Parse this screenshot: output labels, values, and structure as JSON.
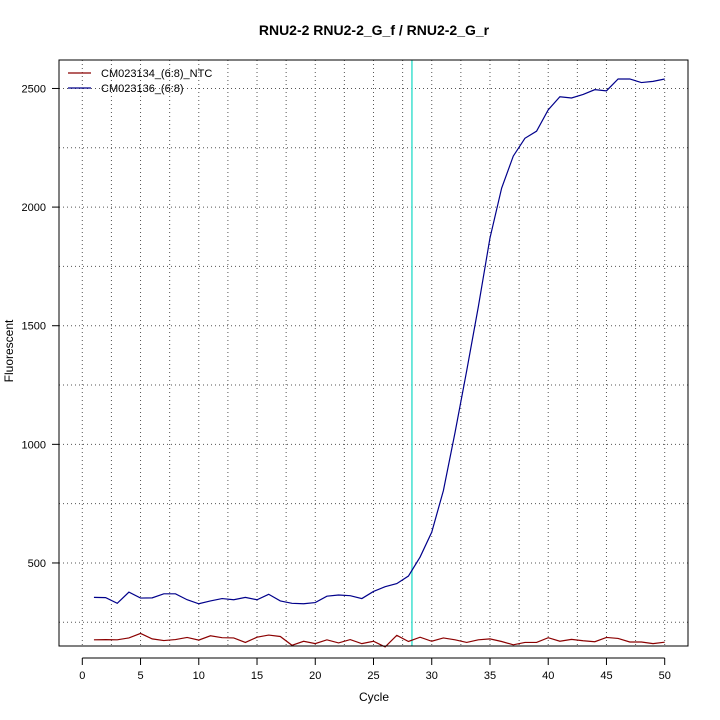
{
  "chart_data": {
    "type": "line",
    "title": "RNU2-2  RNU2-2_G_f / RNU2-2_G_r",
    "xlabel": "Cycle",
    "ylabel": "Fluorescent",
    "xlim": [
      -2,
      52
    ],
    "ylim": [
      150,
      2620
    ],
    "xticks": [
      0,
      5,
      10,
      15,
      20,
      25,
      30,
      35,
      40,
      45,
      50
    ],
    "yticks": [
      500,
      1000,
      1500,
      2000,
      2500
    ],
    "grid": true,
    "legend_position": "top-left",
    "threshold_cycle": 28.3,
    "threshold_color": "#40e0d0",
    "x": [
      1,
      2,
      3,
      4,
      5,
      6,
      7,
      8,
      9,
      10,
      11,
      12,
      13,
      14,
      15,
      16,
      17,
      18,
      19,
      20,
      21,
      22,
      23,
      24,
      25,
      26,
      27,
      28,
      29,
      30,
      31,
      32,
      33,
      34,
      35,
      36,
      37,
      38,
      39,
      40,
      41,
      42,
      43,
      44,
      45,
      46,
      47,
      48,
      49,
      50
    ],
    "series": [
      {
        "name": "CM023134_(6:8)_NTC",
        "color": "#8b0000",
        "values": [
          176,
          177,
          176,
          184,
          203,
          180,
          173,
          177,
          186,
          175,
          193,
          185,
          184,
          165,
          187,
          196,
          190,
          153,
          170,
          160,
          176,
          163,
          177,
          160,
          170,
          146,
          195,
          169,
          187,
          170,
          184,
          176,
          165,
          176,
          180,
          169,
          155,
          165,
          165,
          185,
          170,
          178,
          172,
          168,
          186,
          182,
          167,
          167,
          160,
          166
        ]
      },
      {
        "name": "CM023136_(6:8)",
        "color": "#00008b",
        "values": [
          355,
          354,
          330,
          377,
          352,
          353,
          370,
          370,
          345,
          328,
          340,
          350,
          345,
          355,
          345,
          368,
          340,
          330,
          328,
          333,
          360,
          365,
          362,
          350,
          380,
          400,
          413,
          445,
          525,
          630,
          805,
          1050,
          1310,
          1580,
          1870,
          2080,
          2215,
          2290,
          2320,
          2410,
          2465,
          2460,
          2475,
          2495,
          2490,
          2540,
          2540,
          2525,
          2530,
          2540
        ]
      }
    ]
  }
}
